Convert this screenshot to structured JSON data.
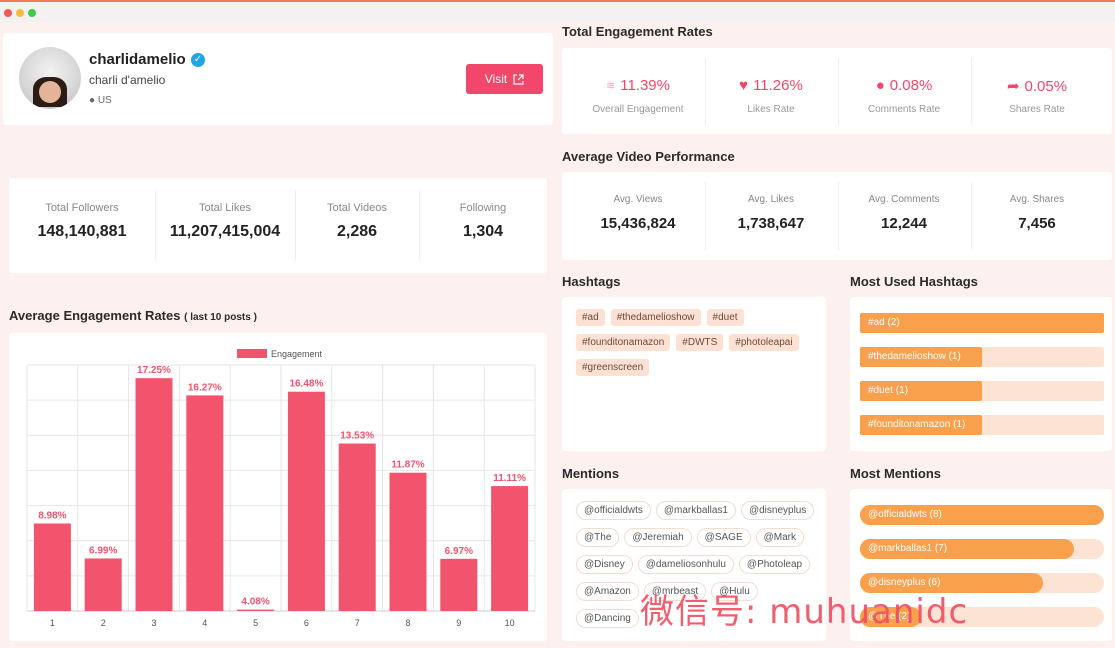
{
  "window": {
    "dots": [
      "#f25a57",
      "#f6bd3a",
      "#3fc84b"
    ]
  },
  "profile": {
    "username": "charlidamelio",
    "display_name": "charli d'amelio",
    "location": "US",
    "visit_label": "Visit"
  },
  "stats": [
    {
      "label": "Total Followers",
      "value": "148,140,881"
    },
    {
      "label": "Total Likes",
      "value": "11,207,415,004"
    },
    {
      "label": "Total Videos",
      "value": "2,286"
    },
    {
      "label": "Following",
      "value": "1,304"
    }
  ],
  "engagement": {
    "title": "Total Engagement Rates",
    "metrics": [
      {
        "icon": "engagement-icon",
        "value": "11.39%",
        "label": "Overall Engagement"
      },
      {
        "icon": "heart-icon",
        "value": "11.26%",
        "label": "Likes Rate"
      },
      {
        "icon": "comment-icon",
        "value": "0.08%",
        "label": "Comments Rate"
      },
      {
        "icon": "share-icon",
        "value": "0.05%",
        "label": "Shares Rate"
      }
    ]
  },
  "video_performance": {
    "title": "Average Video Performance",
    "metrics": [
      {
        "label": "Avg. Views",
        "value": "15,436,824"
      },
      {
        "label": "Avg. Likes",
        "value": "1,738,647"
      },
      {
        "label": "Avg. Comments",
        "value": "12,244"
      },
      {
        "label": "Avg. Shares",
        "value": "7,456"
      }
    ]
  },
  "chart_title": {
    "main": "Average Engagement Rates",
    "sub": "( last 10 posts )"
  },
  "chart_data": {
    "type": "bar",
    "categories": [
      "1",
      "2",
      "3",
      "4",
      "5",
      "6",
      "7",
      "8",
      "9",
      "10"
    ],
    "series": [
      {
        "name": "Engagement",
        "values": [
          8.98,
          6.99,
          17.25,
          16.27,
          4.08,
          16.48,
          13.53,
          11.87,
          6.97,
          11.11
        ]
      }
    ],
    "data_labels": [
      "8.98%",
      "6.99%",
      "17.25%",
      "16.27%",
      "4.08%",
      "16.48%",
      "13.53%",
      "11.87%",
      "6.97%",
      "11.11%"
    ],
    "ylim": [
      4,
      18
    ],
    "grid": true,
    "legend": "top",
    "color": "#f2546e"
  },
  "hashtags": {
    "title": "Hashtags",
    "items": [
      "#ad",
      "#thedamelioshow",
      "#duet",
      "#founditonamazon",
      "#DWTS",
      "#photoleapai",
      "#greenscreen"
    ]
  },
  "most_used_hashtags": {
    "title": "Most Used Hashtags",
    "items": [
      {
        "label": "#ad (2)",
        "fraction": 1.0
      },
      {
        "label": "#thedamelioshow (1)",
        "fraction": 0.5
      },
      {
        "label": "#duet (1)",
        "fraction": 0.5
      },
      {
        "label": "#founditonamazon (1)",
        "fraction": 0.5
      }
    ]
  },
  "mentions": {
    "title": "Mentions",
    "items": [
      "@officialdwts",
      "@markballas1",
      "@disneyplus",
      "@The",
      "@Jeremiah",
      "@SAGE",
      "@Mark",
      "@Disney",
      "@dameliosonhulu",
      "@Photoleap",
      "@Amazon",
      "@mrbeast",
      "@Hulu",
      "@Dancing"
    ]
  },
  "most_mentions": {
    "title": "Most Mentions",
    "items": [
      {
        "label": "@officialdwts (8)",
        "fraction": 1.0
      },
      {
        "label": "@markballas1 (7)",
        "fraction": 0.875
      },
      {
        "label": "@disneyplus (6)",
        "fraction": 0.75
      },
      {
        "label": "@The (2)",
        "fraction": 0.25
      }
    ]
  },
  "watermark": "微信号: muhuanidc"
}
